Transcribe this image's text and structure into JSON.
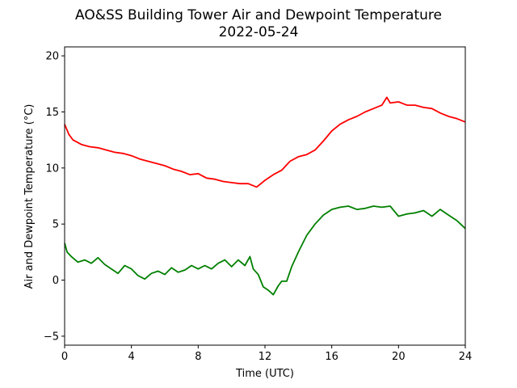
{
  "chart_data": {
    "type": "line",
    "title": "AO&SS Building Tower Air and Dewpoint Temperature",
    "subtitle": "2022-05-24",
    "xlabel": "Time (UTC)",
    "ylabel": "Air and Dewpoint Temperature (°C)",
    "xlim": [
      0,
      24
    ],
    "ylim": [
      -5.8,
      20.8
    ],
    "xticks": [
      "0",
      "4",
      "8",
      "12",
      "16",
      "20",
      "24"
    ],
    "xtick_values": [
      0,
      4,
      8,
      12,
      16,
      20,
      24
    ],
    "yticks": [
      "−5",
      "0",
      "5",
      "10",
      "15",
      "20"
    ],
    "ytick_values": [
      -5,
      0,
      5,
      10,
      15,
      20
    ],
    "grid": false,
    "series": [
      {
        "color": "#ff0000",
        "x": [
          0,
          0.25,
          0.5,
          1,
          1.5,
          2,
          2.5,
          3,
          3.5,
          4,
          4.5,
          5,
          5.5,
          6,
          6.5,
          7,
          7.5,
          8,
          8.5,
          9,
          9.5,
          10,
          10.5,
          11,
          11.5,
          12,
          12.5,
          13,
          13.5,
          14,
          14.5,
          15,
          15.5,
          16,
          16.5,
          17,
          17.5,
          18,
          18.5,
          19,
          19.3,
          19.5,
          20,
          20.5,
          21,
          21.5,
          22,
          22.5,
          23,
          23.5,
          24
        ],
        "y": [
          13.9,
          13.0,
          12.5,
          12.1,
          11.9,
          11.8,
          11.6,
          11.4,
          11.3,
          11.1,
          10.8,
          10.6,
          10.4,
          10.2,
          9.9,
          9.7,
          9.4,
          9.5,
          9.1,
          9.0,
          8.8,
          8.7,
          8.6,
          8.6,
          8.3,
          8.9,
          9.4,
          9.8,
          10.6,
          11.0,
          11.2,
          11.6,
          12.4,
          13.3,
          13.9,
          14.3,
          14.6,
          15.0,
          15.3,
          15.6,
          16.3,
          15.8,
          15.9,
          15.6,
          15.6,
          15.4,
          15.3,
          14.9,
          14.6,
          14.4,
          14.1
        ]
      },
      {
        "color": "#008000",
        "x": [
          0,
          0.15,
          0.4,
          0.8,
          1.2,
          1.6,
          2.0,
          2.4,
          2.8,
          3.2,
          3.6,
          4.0,
          4.4,
          4.8,
          5.2,
          5.6,
          6.0,
          6.4,
          6.8,
          7.2,
          7.6,
          8.0,
          8.4,
          8.8,
          9.2,
          9.6,
          10.0,
          10.4,
          10.8,
          11.1,
          11.3,
          11.6,
          11.9,
          12.2,
          12.5,
          12.8,
          13.0,
          13.3,
          13.6,
          14.0,
          14.5,
          15.0,
          15.5,
          16.0,
          16.5,
          17.0,
          17.5,
          18.0,
          18.5,
          19.0,
          19.5,
          20.0,
          20.5,
          21.0,
          21.5,
          22.0,
          22.5,
          23.0,
          23.5,
          24.0
        ],
        "y": [
          3.3,
          2.5,
          2.1,
          1.6,
          1.8,
          1.5,
          2.0,
          1.4,
          1.0,
          0.6,
          1.3,
          1.0,
          0.4,
          0.1,
          0.6,
          0.8,
          0.5,
          1.1,
          0.7,
          0.9,
          1.3,
          1.0,
          1.3,
          1.0,
          1.5,
          1.8,
          1.2,
          1.8,
          1.3,
          2.1,
          1.0,
          0.5,
          -0.6,
          -0.9,
          -1.3,
          -0.5,
          -0.1,
          -0.1,
          1.2,
          2.5,
          4.0,
          5.0,
          5.8,
          6.3,
          6.5,
          6.6,
          6.3,
          6.4,
          6.6,
          6.5,
          6.6,
          5.7,
          5.9,
          6.0,
          6.2,
          5.7,
          6.3,
          5.8,
          5.3,
          4.6
        ]
      }
    ]
  }
}
